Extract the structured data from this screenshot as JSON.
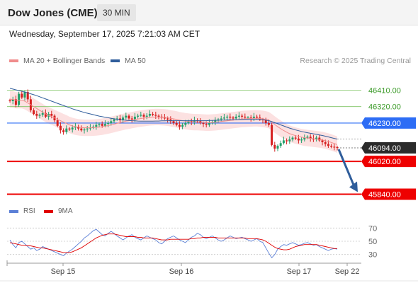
{
  "header": {
    "title": "Dow Jones (CME)",
    "timeframe": "30 MIN"
  },
  "datetime": "Wednesday, September 17, 2025 7:21:03 AM CET",
  "legend": {
    "ma20": {
      "label": "MA 20 + Bollinger Bands",
      "color": "#f08c8c"
    },
    "ma50": {
      "label": "MA 50",
      "color": "#2f5d9b"
    },
    "credit": "Research © 2025 Trading Central"
  },
  "rsi_legend": {
    "rsi": {
      "label": "RSI",
      "color": "#5b7fd6"
    },
    "ma9": {
      "label": "9MA",
      "color": "#e00000"
    }
  },
  "colors": {
    "up_candle": "#22a06b",
    "down_candle": "#d62020",
    "support": "#ee0000",
    "pivot": "#2d6df5",
    "resistance": "#7dc462",
    "current_price_bg": "#2b2b2b",
    "bb_fill": "#fbdcdc",
    "arrow": "#2f5d9b"
  },
  "chart_data": {
    "type": "candlestick",
    "price_levels": [
      {
        "value": 46410,
        "label": "46410.00",
        "kind": "resistance"
      },
      {
        "value": 46320,
        "label": "46320.00",
        "kind": "resistance"
      },
      {
        "value": 46230,
        "label": "46230.00",
        "kind": "pivot"
      },
      {
        "value": 46094,
        "label": "46094.00",
        "kind": "current"
      },
      {
        "value": 46020,
        "label": "46020.00",
        "kind": "support"
      },
      {
        "value": 45840,
        "label": "45840.00",
        "kind": "support"
      }
    ],
    "x_ticks": [
      "Sep 15",
      "Sep 16",
      "Sep 17",
      "Sep 22"
    ],
    "close": [
      46350,
      46360,
      46330,
      46390,
      46370,
      46400,
      46360,
      46300,
      46280,
      46270,
      46275,
      46285,
      46265,
      46280,
      46270,
      46245,
      46215,
      46190,
      46180,
      46200,
      46195,
      46205,
      46210,
      46200,
      46190,
      46195,
      46200,
      46205,
      46210,
      46220,
      46225,
      46215,
      46225,
      46230,
      46240,
      46250,
      46255,
      46245,
      46260,
      46270,
      46255,
      46250,
      46265,
      46270,
      46275,
      46265,
      46270,
      46280,
      46275,
      46270,
      46265,
      46260,
      46255,
      46250,
      46240,
      46230,
      46220,
      46210,
      46220,
      46230,
      46240,
      46235,
      46245,
      46240,
      46230,
      46225,
      46220,
      46230,
      46235,
      46245,
      46250,
      46255,
      46260,
      46265,
      46260,
      46255,
      46265,
      46270,
      46265,
      46260,
      46260,
      46255,
      46265,
      46260,
      46250,
      46245,
      46230,
      46220,
      46110,
      46090,
      46105,
      46120,
      46135,
      46130,
      46140,
      46150,
      46145,
      46135,
      46140,
      46150,
      46155,
      46145,
      46140,
      46150,
      46135,
      46125,
      46115,
      46105,
      46100,
      46098,
      46094
    ],
    "ma20": [
      46360,
      46360,
      46355,
      46355,
      46355,
      46350,
      46340,
      46330,
      46320,
      46310,
      46300,
      46290,
      46280,
      46272,
      46265,
      46258,
      46250,
      46243,
      46235,
      46228,
      46220,
      46214,
      46210,
      46207,
      46205,
      46204,
      46204,
      46204,
      46205,
      46206,
      46208,
      46210,
      46213,
      46216,
      46220,
      46224,
      46228,
      46232,
      46236,
      46240,
      46243,
      46246,
      46249,
      46252,
      46255,
      46257,
      46259,
      46261,
      46262,
      46263,
      46263,
      46262,
      46261,
      46259,
      46256,
      46253,
      46250,
      46246,
      46243,
      46240,
      46238,
      46236,
      46235,
      46235,
      46234,
      46233,
      46232,
      46232,
      46233,
      46234,
      46236,
      46238,
      46240,
      46242,
      46244,
      46246,
      46248,
      46250,
      46252,
      46253,
      46254,
      46255,
      46256,
      46256,
      46255,
      46253,
      46250,
      46246,
      46235,
      46222,
      46210,
      46199,
      46189,
      46180,
      46172,
      46166,
      46161,
      46157,
      46153,
      46150,
      46148,
      46146,
      46144,
      46142,
      46140,
      46137,
      46133,
      46129,
      46124,
      46118,
      46112
    ],
    "ma50": [
      46420,
      46416,
      46412,
      46408,
      46404,
      46400,
      46395,
      46390,
      46385,
      46380,
      46374,
      46368,
      46362,
      46356,
      46350,
      46344,
      46338,
      46332,
      46326,
      46320,
      46314,
      46308,
      46303,
      46298,
      46293,
      46288,
      46284,
      46280,
      46276,
      46272,
      46268,
      46265,
      46262,
      46259,
      46256,
      46253,
      46251,
      46249,
      46247,
      46245,
      46244,
      46243,
      46242,
      46241,
      46240,
      46240,
      46240,
      46240,
      46240,
      46241,
      46241,
      46242,
      46242,
      46243,
      46243,
      46243,
      46243,
      46243,
      46243,
      46243,
      46243,
      46243,
      46243,
      46243,
      46243,
      46243,
      46243,
      46244,
      46244,
      46245,
      46245,
      46246,
      46246,
      46247,
      46247,
      46248,
      46248,
      46249,
      46249,
      46250,
      46250,
      46250,
      46250,
      46250,
      46249,
      46248,
      46246,
      46243,
      46238,
      46232,
      46226,
      46220,
      46214,
      46208,
      46202,
      46197,
      46192,
      46188,
      46184,
      46180,
      46177,
      46174,
      46171,
      46168,
      46165,
      46162,
      46158,
      46154,
      46150,
      46146,
      46142
    ],
    "bb_width": 45,
    "y_range": [
      45780,
      46470
    ],
    "rsi": {
      "levels": [
        70,
        50,
        30
      ],
      "range": [
        20,
        80
      ],
      "values": [
        52,
        45,
        40,
        48,
        50,
        46,
        42,
        38,
        40,
        36,
        38,
        42,
        40,
        38,
        36,
        34,
        32,
        30,
        28,
        32,
        35,
        38,
        42,
        46,
        50,
        55,
        58,
        62,
        66,
        68,
        64,
        60,
        58,
        62,
        65,
        62,
        58,
        55,
        52,
        55,
        58,
        60,
        56,
        54,
        52,
        55,
        58,
        56,
        54,
        52,
        48,
        46,
        50,
        54,
        56,
        58,
        55,
        52,
        50,
        48,
        52,
        56,
        58,
        62,
        60,
        56,
        54,
        56,
        58,
        55,
        52,
        50,
        52,
        55,
        58,
        56,
        54,
        55,
        56,
        54,
        52,
        50,
        52,
        54,
        50,
        48,
        40,
        32,
        25,
        30,
        38,
        42,
        45,
        44,
        46,
        48,
        46,
        44,
        45,
        47,
        48,
        46,
        44,
        45,
        42,
        40,
        38,
        36,
        38,
        39,
        38
      ],
      "ma9": [
        48,
        47,
        46,
        45,
        44,
        44,
        43,
        43,
        42,
        41,
        40,
        40,
        39,
        38,
        37,
        36,
        35,
        34,
        33,
        33,
        33,
        34,
        36,
        38,
        40,
        43,
        46,
        49,
        52,
        55,
        57,
        59,
        60,
        61,
        61,
        61,
        60,
        59,
        58,
        57,
        57,
        57,
        57,
        56,
        56,
        55,
        55,
        55,
        55,
        54,
        53,
        52,
        52,
        52,
        53,
        53,
        53,
        53,
        53,
        53,
        53,
        54,
        54,
        55,
        55,
        56,
        56,
        56,
        56,
        56,
        55,
        55,
        55,
        55,
        55,
        55,
        55,
        55,
        55,
        55,
        54,
        54,
        54,
        54,
        53,
        52,
        50,
        47,
        44,
        41,
        39,
        38,
        37,
        37,
        38,
        40,
        42,
        43,
        44,
        45,
        45,
        45,
        45,
        45,
        44,
        43,
        42,
        41,
        40,
        39,
        39
      ]
    }
  }
}
